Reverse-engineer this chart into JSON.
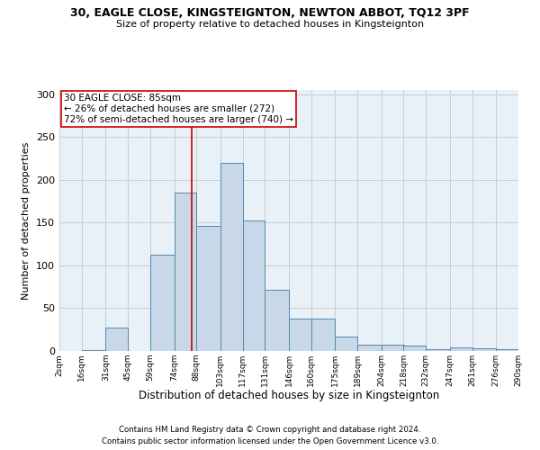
{
  "title1": "30, EAGLE CLOSE, KINGSTEIGNTON, NEWTON ABBOT, TQ12 3PF",
  "title2": "Size of property relative to detached houses in Kingsteignton",
  "xlabel": "Distribution of detached houses by size in Kingsteignton",
  "ylabel": "Number of detached properties",
  "footnote1": "Contains HM Land Registry data © Crown copyright and database right 2024.",
  "footnote2": "Contains public sector information licensed under the Open Government Licence v3.0.",
  "annotation_line1": "30 EAGLE CLOSE: 85sqm",
  "annotation_line2": "← 26% of detached houses are smaller (272)",
  "annotation_line3": "72% of semi-detached houses are larger (740) →",
  "property_size": 85,
  "bar_color": "#c8d8e8",
  "bar_edge_color": "#5588aa",
  "red_line_color": "#cc0000",
  "annotation_box_color": "#ffffff",
  "annotation_box_edge": "#cc0000",
  "background_color": "#ffffff",
  "axes_bg_color": "#e8f0f8",
  "grid_color": "#cccccc",
  "bins": [
    2,
    16,
    31,
    45,
    59,
    74,
    88,
    103,
    117,
    131,
    146,
    160,
    175,
    189,
    204,
    218,
    232,
    247,
    261,
    276,
    290
  ],
  "bin_labels": [
    "2sqm",
    "16sqm",
    "31sqm",
    "45sqm",
    "59sqm",
    "74sqm",
    "88sqm",
    "103sqm",
    "117sqm",
    "131sqm",
    "146sqm",
    "160sqm",
    "175sqm",
    "189sqm",
    "204sqm",
    "218sqm",
    "232sqm",
    "247sqm",
    "261sqm",
    "276sqm",
    "290sqm"
  ],
  "values": [
    0,
    1,
    27,
    0,
    113,
    185,
    146,
    220,
    152,
    72,
    38,
    38,
    17,
    7,
    7,
    6,
    2,
    4,
    3,
    2
  ],
  "ylim": [
    0,
    305
  ],
  "yticks": [
    0,
    50,
    100,
    150,
    200,
    250,
    300
  ]
}
